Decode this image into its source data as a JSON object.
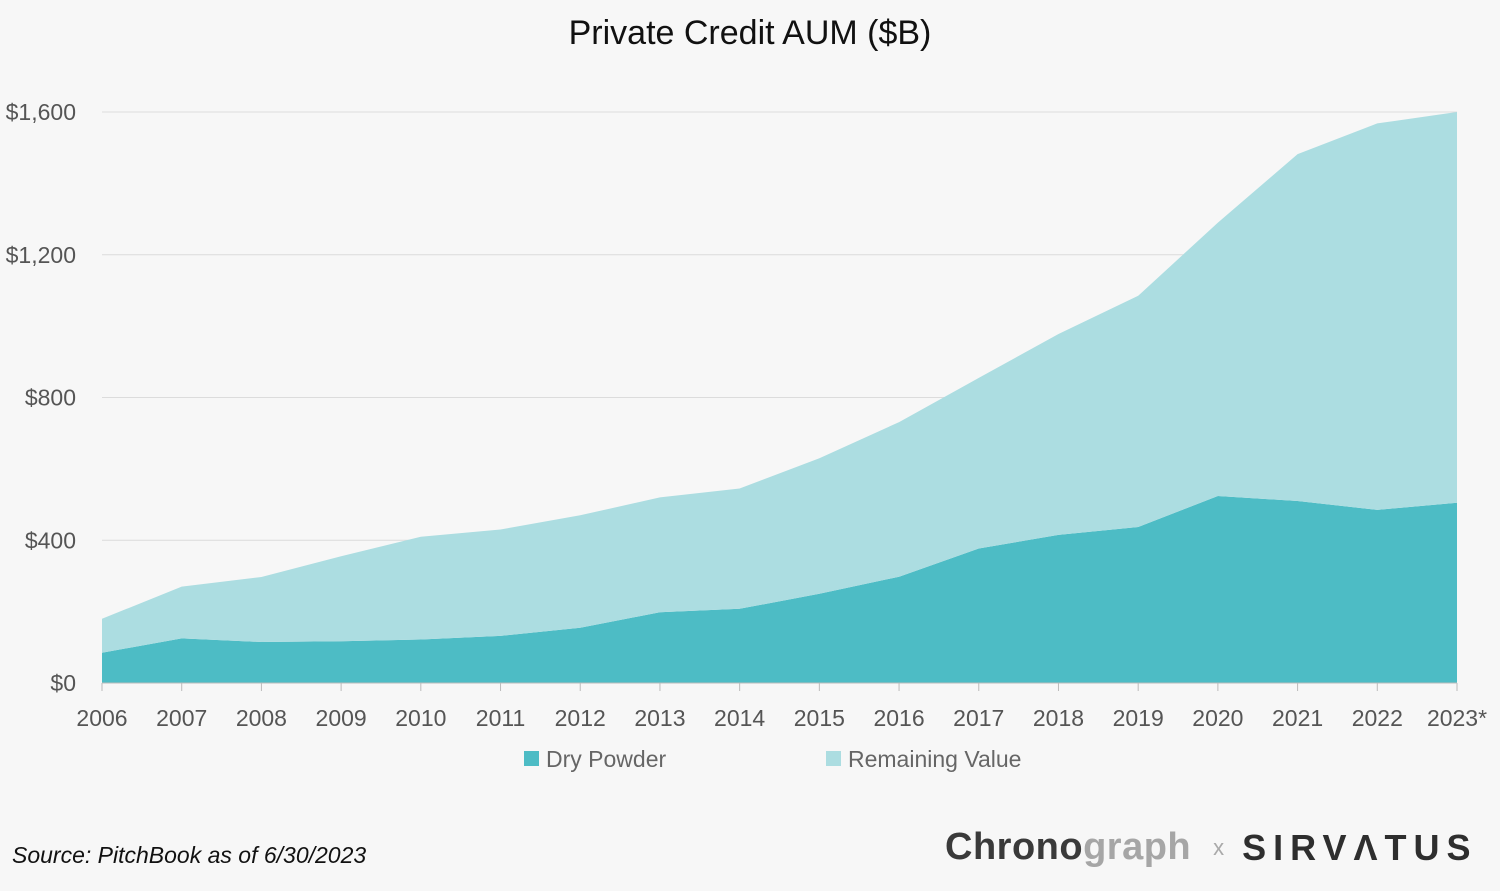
{
  "chart_data": {
    "type": "area",
    "stacked": true,
    "title": "Private Credit AUM ($B)",
    "categories": [
      "2006",
      "2007",
      "2008",
      "2009",
      "2010",
      "2011",
      "2012",
      "2013",
      "2014",
      "2015",
      "2016",
      "2017",
      "2018",
      "2019",
      "2020",
      "2021",
      "2022",
      "2023*"
    ],
    "series": [
      {
        "name": "Dry Powder",
        "color": "#4dbcc5",
        "values": [
          85,
          125,
          115,
          117,
          122,
          132,
          155,
          198,
          208,
          250,
          298,
          377,
          415,
          437,
          524,
          510,
          485,
          505
        ]
      },
      {
        "name": "Remaining Value",
        "color": "#acdde1",
        "values": [
          95,
          145,
          182,
          238,
          288,
          298,
          315,
          322,
          337,
          380,
          433,
          478,
          563,
          648,
          766,
          972,
          1083,
          1095
        ]
      }
    ],
    "y_ticks": [
      "$0",
      "$400",
      "$800",
      "$1,200",
      "$1,600"
    ],
    "y_tick_values": [
      0,
      400,
      800,
      1200,
      1600
    ],
    "ylim": [
      0,
      1600
    ],
    "grid": true,
    "legend_position": "bottom"
  },
  "footer": {
    "source": "Source: PitchBook as of 6/30/2023",
    "logo_chrono": "Chrono",
    "logo_graph": "graph",
    "logo_x": "x",
    "logo_sirvatus": "SIRVΛTUS"
  }
}
